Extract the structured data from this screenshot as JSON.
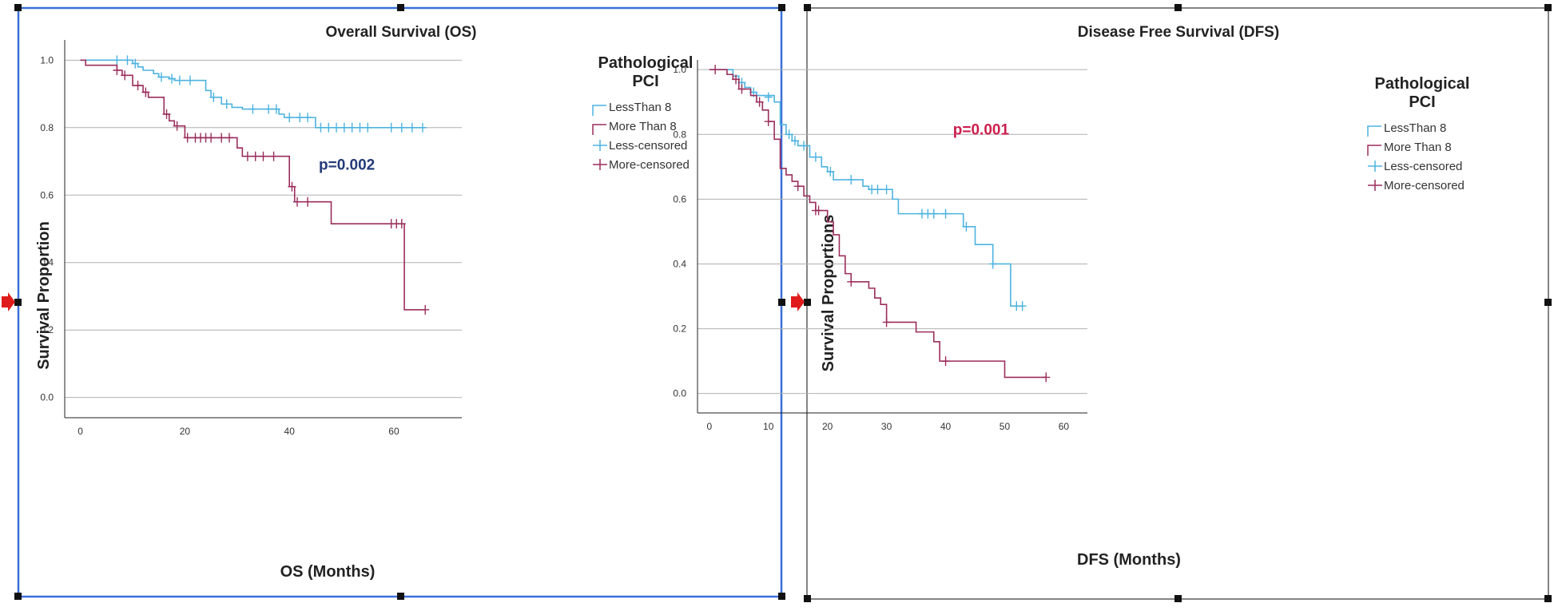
{
  "chart_data": [
    {
      "type": "line",
      "step": true,
      "title": "Overall Survival (OS)",
      "xlabel": "OS (Months)",
      "ylabel": "Survival Proportion",
      "xlim": [
        -3,
        73
      ],
      "ylim": [
        -0.06,
        1.06
      ],
      "xticks": [
        0,
        20,
        40,
        60
      ],
      "yticks": [
        0.0,
        0.2,
        0.4,
        0.6,
        0.8,
        1.0
      ],
      "ytick_labels": [
        "0.0",
        "0.2",
        "0.4",
        "0.6",
        "0.8",
        "1.0"
      ],
      "grid": "horizontal",
      "annotation": {
        "text": "p=0.002",
        "x": 51,
        "y": 0.675,
        "color": "#243b7a"
      },
      "legend": {
        "title_lines": [
          "Pathological",
          "PCI"
        ],
        "entries": [
          "LessThan 8",
          "More Than 8",
          "Less-censored",
          "More-censored"
        ],
        "placement": "top-right, outside plot"
      },
      "series": [
        {
          "name": "LessThan 8",
          "color": "#4db3e0",
          "steps": [
            [
              0,
              1.0
            ],
            [
              10,
              0.99
            ],
            [
              11,
              0.98
            ],
            [
              12,
              0.97
            ],
            [
              14,
              0.96
            ],
            [
              15,
              0.95
            ],
            [
              17,
              0.945
            ],
            [
              18,
              0.94
            ],
            [
              24,
              0.91
            ],
            [
              25,
              0.89
            ],
            [
              27,
              0.87
            ],
            [
              29,
              0.86
            ],
            [
              31,
              0.855
            ],
            [
              38,
              0.84
            ],
            [
              39,
              0.83
            ],
            [
              45,
              0.8
            ],
            [
              66,
              0.8
            ]
          ],
          "censored": [
            [
              7,
              1.0
            ],
            [
              9,
              1.0
            ],
            [
              10.5,
              0.99
            ],
            [
              15.5,
              0.95
            ],
            [
              17.5,
              0.945
            ],
            [
              19,
              0.94
            ],
            [
              21,
              0.94
            ],
            [
              25.5,
              0.89
            ],
            [
              28,
              0.87
            ],
            [
              33,
              0.855
            ],
            [
              36,
              0.855
            ],
            [
              37.5,
              0.855
            ],
            [
              40,
              0.83
            ],
            [
              42,
              0.83
            ],
            [
              43.5,
              0.83
            ],
            [
              46,
              0.8
            ],
            [
              47.5,
              0.8
            ],
            [
              49,
              0.8
            ],
            [
              50.5,
              0.8
            ],
            [
              52,
              0.8
            ],
            [
              53.5,
              0.8
            ],
            [
              55,
              0.8
            ],
            [
              59.5,
              0.8
            ],
            [
              61.5,
              0.8
            ],
            [
              63.5,
              0.8
            ],
            [
              65.5,
              0.8
            ]
          ]
        },
        {
          "name": "More Than 8",
          "color": "#9b2d5c",
          "steps": [
            [
              0,
              1.0
            ],
            [
              1,
              0.985
            ],
            [
              7,
              0.97
            ],
            [
              8,
              0.955
            ],
            [
              10,
              0.925
            ],
            [
              12,
              0.905
            ],
            [
              13,
              0.89
            ],
            [
              16,
              0.84
            ],
            [
              17,
              0.82
            ],
            [
              18,
              0.805
            ],
            [
              20,
              0.77
            ],
            [
              30,
              0.74
            ],
            [
              31,
              0.715
            ],
            [
              40,
              0.625
            ],
            [
              41,
              0.58
            ],
            [
              48,
              0.515
            ],
            [
              62,
              0.26
            ],
            [
              66,
              0.26
            ]
          ],
          "censored": [
            [
              7,
              0.97
            ],
            [
              8.5,
              0.955
            ],
            [
              11,
              0.925
            ],
            [
              12.5,
              0.905
            ],
            [
              16.5,
              0.84
            ],
            [
              18.5,
              0.805
            ],
            [
              20.5,
              0.77
            ],
            [
              22,
              0.77
            ],
            [
              23,
              0.77
            ],
            [
              24,
              0.77
            ],
            [
              25,
              0.77
            ],
            [
              27,
              0.77
            ],
            [
              28.5,
              0.77
            ],
            [
              32,
              0.715
            ],
            [
              33.5,
              0.715
            ],
            [
              35,
              0.715
            ],
            [
              37,
              0.715
            ],
            [
              40.5,
              0.625
            ],
            [
              41.5,
              0.58
            ],
            [
              43.5,
              0.58
            ],
            [
              59.5,
              0.515
            ],
            [
              60.5,
              0.515
            ],
            [
              61.5,
              0.515
            ],
            [
              66,
              0.26
            ]
          ]
        }
      ]
    },
    {
      "type": "line",
      "step": true,
      "title": "Disease Free Survival (DFS)",
      "xlabel": "DFS (Months)",
      "ylabel": "Survival Proportions",
      "xlim": [
        -2,
        64
      ],
      "ylim": [
        -0.06,
        1.03
      ],
      "xticks": [
        0,
        10,
        20,
        30,
        40,
        50,
        60
      ],
      "yticks": [
        0.0,
        0.2,
        0.4,
        0.6,
        0.8,
        1.0
      ],
      "ytick_labels": [
        "0.0",
        "0.2",
        "0.4",
        "0.6",
        "0.8",
        "1.0"
      ],
      "grid": "horizontal",
      "annotation": {
        "text": "p=0.001",
        "x": 46,
        "y": 0.8,
        "color": "#cc1f4d"
      },
      "legend": {
        "title_lines": [
          "Pathological",
          "PCI"
        ],
        "entries": [
          "LessThan 8",
          "More Than 8",
          "Less-censored",
          "More-censored"
        ],
        "placement": "top-right, outside plot"
      },
      "series": [
        {
          "name": "LessThan 8",
          "color": "#4db3e0",
          "steps": [
            [
              0,
              1.0
            ],
            [
              4,
              0.98
            ],
            [
              5,
              0.96
            ],
            [
              6,
              0.945
            ],
            [
              7,
              0.93
            ],
            [
              8,
              0.92
            ],
            [
              11,
              0.9
            ],
            [
              12,
              0.83
            ],
            [
              13,
              0.8
            ],
            [
              14,
              0.78
            ],
            [
              15,
              0.765
            ],
            [
              17,
              0.73
            ],
            [
              19,
              0.7
            ],
            [
              20,
              0.685
            ],
            [
              21,
              0.66
            ],
            [
              26,
              0.64
            ],
            [
              27,
              0.63
            ],
            [
              31,
              0.6
            ],
            [
              32,
              0.555
            ],
            [
              42,
              0.555
            ],
            [
              43,
              0.515
            ],
            [
              45,
              0.46
            ],
            [
              48,
              0.4
            ],
            [
              51,
              0.27
            ],
            [
              53,
              0.27
            ]
          ],
          "censored": [
            [
              5.5,
              0.96
            ],
            [
              7.5,
              0.93
            ],
            [
              10,
              0.915
            ],
            [
              13.5,
              0.8
            ],
            [
              14.5,
              0.78
            ],
            [
              16,
              0.765
            ],
            [
              18,
              0.73
            ],
            [
              20.5,
              0.685
            ],
            [
              24,
              0.66
            ],
            [
              27.5,
              0.63
            ],
            [
              28.5,
              0.63
            ],
            [
              30,
              0.63
            ],
            [
              36,
              0.555
            ],
            [
              37,
              0.555
            ],
            [
              38,
              0.555
            ],
            [
              40,
              0.555
            ],
            [
              43.5,
              0.515
            ],
            [
              48,
              0.4
            ],
            [
              52,
              0.27
            ],
            [
              53,
              0.27
            ]
          ]
        },
        {
          "name": "More Than 8",
          "color": "#9b2d5c",
          "steps": [
            [
              0,
              1.0
            ],
            [
              3,
              0.985
            ],
            [
              4,
              0.97
            ],
            [
              5,
              0.94
            ],
            [
              7,
              0.92
            ],
            [
              8,
              0.9
            ],
            [
              9,
              0.875
            ],
            [
              10,
              0.84
            ],
            [
              11,
              0.785
            ],
            [
              12,
              0.695
            ],
            [
              13,
              0.675
            ],
            [
              14,
              0.655
            ],
            [
              15,
              0.64
            ],
            [
              16,
              0.61
            ],
            [
              17,
              0.59
            ],
            [
              18,
              0.565
            ],
            [
              20,
              0.53
            ],
            [
              21,
              0.49
            ],
            [
              22,
              0.425
            ],
            [
              23,
              0.37
            ],
            [
              24,
              0.345
            ],
            [
              27,
              0.325
            ],
            [
              28,
              0.295
            ],
            [
              29,
              0.275
            ],
            [
              30,
              0.22
            ],
            [
              35,
              0.19
            ],
            [
              38,
              0.16
            ],
            [
              39,
              0.1
            ],
            [
              50,
              0.05
            ],
            [
              57,
              0.05
            ]
          ],
          "censored": [
            [
              1,
              1.0
            ],
            [
              4.5,
              0.97
            ],
            [
              5.5,
              0.94
            ],
            [
              8.5,
              0.9
            ],
            [
              10,
              0.84
            ],
            [
              15,
              0.64
            ],
            [
              18,
              0.565
            ],
            [
              18.5,
              0.565
            ],
            [
              24,
              0.345
            ],
            [
              30,
              0.22
            ],
            [
              40,
              0.1
            ],
            [
              57,
              0.05
            ]
          ]
        }
      ]
    }
  ]
}
